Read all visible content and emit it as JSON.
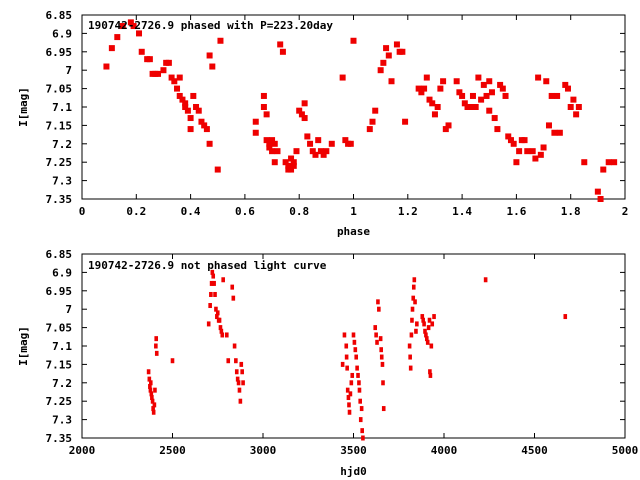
{
  "point_color": "#ee0000",
  "chart_data": [
    {
      "type": "scatter",
      "title": "190742-2726.9 phased with P=223.20day",
      "xlabel": "phase",
      "ylabel": "I[mag]",
      "xlim": [
        0,
        2
      ],
      "ylim": [
        7.35,
        6.85
      ],
      "y_inverted": true,
      "grid": false,
      "x_ticks": [
        "0",
        "0.2",
        "0.4",
        "0.6",
        "0.8",
        "1",
        "1.2",
        "1.4",
        "1.6",
        "1.8",
        "2"
      ],
      "y_ticks": [
        "6.85",
        "6.9",
        "6.95",
        "7",
        "7.05",
        "7.1",
        "7.15",
        "7.2",
        "7.25",
        "7.3",
        "7.35"
      ],
      "points": [
        [
          0.09,
          6.99
        ],
        [
          0.11,
          6.94
        ],
        [
          0.13,
          6.91
        ],
        [
          0.15,
          6.88
        ],
        [
          0.18,
          6.87
        ],
        [
          0.19,
          6.88
        ],
        [
          0.21,
          6.9
        ],
        [
          0.22,
          6.95
        ],
        [
          0.24,
          6.97
        ],
        [
          0.25,
          6.97
        ],
        [
          0.26,
          7.01
        ],
        [
          0.27,
          7.01
        ],
        [
          0.28,
          7.01
        ],
        [
          0.3,
          7.0
        ],
        [
          0.31,
          6.98
        ],
        [
          0.32,
          6.98
        ],
        [
          0.33,
          7.02
        ],
        [
          0.34,
          7.03
        ],
        [
          0.35,
          7.05
        ],
        [
          0.36,
          7.07
        ],
        [
          0.36,
          7.02
        ],
        [
          0.37,
          7.08
        ],
        [
          0.38,
          7.1
        ],
        [
          0.38,
          7.09
        ],
        [
          0.39,
          7.11
        ],
        [
          0.4,
          7.13
        ],
        [
          0.4,
          7.16
        ],
        [
          0.41,
          7.07
        ],
        [
          0.42,
          7.1
        ],
        [
          0.43,
          7.11
        ],
        [
          0.44,
          7.14
        ],
        [
          0.45,
          7.15
        ],
        [
          0.46,
          7.16
        ],
        [
          0.47,
          7.2
        ],
        [
          0.47,
          6.96
        ],
        [
          0.48,
          6.99
        ],
        [
          0.5,
          7.27
        ],
        [
          0.51,
          6.92
        ],
        [
          0.64,
          7.14
        ],
        [
          0.64,
          7.17
        ],
        [
          0.67,
          7.1
        ],
        [
          0.67,
          7.07
        ],
        [
          0.68,
          7.12
        ],
        [
          0.68,
          7.19
        ],
        [
          0.69,
          7.2
        ],
        [
          0.69,
          7.21
        ],
        [
          0.7,
          7.19
        ],
        [
          0.7,
          7.22
        ],
        [
          0.71,
          7.2
        ],
        [
          0.71,
          7.25
        ],
        [
          0.72,
          7.22
        ],
        [
          0.73,
          6.93
        ],
        [
          0.74,
          6.95
        ],
        [
          0.75,
          7.25
        ],
        [
          0.76,
          7.26
        ],
        [
          0.76,
          7.27
        ],
        [
          0.77,
          7.24
        ],
        [
          0.77,
          7.27
        ],
        [
          0.78,
          7.26
        ],
        [
          0.78,
          7.25
        ],
        [
          0.79,
          7.22
        ],
        [
          0.8,
          7.11
        ],
        [
          0.81,
          7.12
        ],
        [
          0.82,
          7.09
        ],
        [
          0.82,
          7.13
        ],
        [
          0.83,
          7.18
        ],
        [
          0.84,
          7.2
        ],
        [
          0.85,
          7.22
        ],
        [
          0.86,
          7.23
        ],
        [
          0.87,
          7.19
        ],
        [
          0.88,
          7.22
        ],
        [
          0.89,
          7.23
        ],
        [
          0.9,
          7.22
        ],
        [
          0.92,
          7.2
        ],
        [
          0.96,
          7.02
        ],
        [
          0.97,
          7.19
        ],
        [
          0.98,
          7.2
        ],
        [
          0.99,
          7.2
        ],
        [
          1.0,
          6.92
        ],
        [
          1.06,
          7.16
        ],
        [
          1.07,
          7.14
        ],
        [
          1.08,
          7.11
        ],
        [
          1.1,
          7.0
        ],
        [
          1.11,
          6.98
        ],
        [
          1.12,
          6.94
        ],
        [
          1.13,
          6.96
        ],
        [
          1.14,
          7.03
        ],
        [
          1.16,
          6.93
        ],
        [
          1.17,
          6.95
        ],
        [
          1.18,
          6.95
        ],
        [
          1.19,
          7.14
        ],
        [
          1.24,
          7.05
        ],
        [
          1.25,
          7.06
        ],
        [
          1.26,
          7.05
        ],
        [
          1.27,
          7.02
        ],
        [
          1.28,
          7.08
        ],
        [
          1.29,
          7.09
        ],
        [
          1.3,
          7.12
        ],
        [
          1.31,
          7.1
        ],
        [
          1.32,
          7.05
        ],
        [
          1.33,
          7.03
        ],
        [
          1.34,
          7.16
        ],
        [
          1.35,
          7.15
        ],
        [
          1.38,
          7.03
        ],
        [
          1.39,
          7.06
        ],
        [
          1.4,
          7.07
        ],
        [
          1.41,
          7.09
        ],
        [
          1.42,
          7.1
        ],
        [
          1.43,
          7.1
        ],
        [
          1.44,
          7.07
        ],
        [
          1.45,
          7.1
        ],
        [
          1.46,
          7.02
        ],
        [
          1.47,
          7.08
        ],
        [
          1.48,
          7.04
        ],
        [
          1.49,
          7.07
        ],
        [
          1.5,
          7.03
        ],
        [
          1.5,
          7.11
        ],
        [
          1.51,
          7.06
        ],
        [
          1.52,
          7.13
        ],
        [
          1.53,
          7.16
        ],
        [
          1.54,
          7.04
        ],
        [
          1.55,
          7.05
        ],
        [
          1.56,
          7.07
        ],
        [
          1.57,
          7.18
        ],
        [
          1.58,
          7.19
        ],
        [
          1.59,
          7.2
        ],
        [
          1.6,
          7.25
        ],
        [
          1.61,
          7.22
        ],
        [
          1.62,
          7.19
        ],
        [
          1.63,
          7.19
        ],
        [
          1.64,
          7.22
        ],
        [
          1.66,
          7.22
        ],
        [
          1.67,
          7.24
        ],
        [
          1.68,
          7.02
        ],
        [
          1.69,
          7.23
        ],
        [
          1.7,
          7.21
        ],
        [
          1.71,
          7.03
        ],
        [
          1.72,
          7.15
        ],
        [
          1.73,
          7.07
        ],
        [
          1.74,
          7.17
        ],
        [
          1.75,
          7.07
        ],
        [
          1.76,
          7.17
        ],
        [
          1.78,
          7.04
        ],
        [
          1.79,
          7.05
        ],
        [
          1.8,
          7.1
        ],
        [
          1.81,
          7.08
        ],
        [
          1.82,
          7.12
        ],
        [
          1.83,
          7.1
        ],
        [
          1.85,
          7.25
        ],
        [
          1.9,
          7.33
        ],
        [
          1.91,
          7.35
        ],
        [
          1.92,
          7.27
        ],
        [
          1.94,
          7.25
        ],
        [
          1.96,
          7.25
        ]
      ]
    },
    {
      "type": "scatter",
      "title": "190742-2726.9 not phased light curve",
      "xlabel": "hjd0",
      "ylabel": "I[mag]",
      "xlim": [
        2000,
        5000
      ],
      "ylim": [
        7.35,
        6.85
      ],
      "y_inverted": true,
      "grid": false,
      "x_ticks": [
        "2000",
        "2500",
        "3000",
        "3500",
        "4000",
        "4500",
        "5000"
      ],
      "y_ticks": [
        "6.85",
        "6.9",
        "6.95",
        "7",
        "7.05",
        "7.1",
        "7.15",
        "7.2",
        "7.25",
        "7.3",
        "7.35"
      ],
      "points": [
        [
          2368,
          7.17
        ],
        [
          2372,
          7.19
        ],
        [
          2375,
          7.21
        ],
        [
          2378,
          7.22
        ],
        [
          2380,
          7.2
        ],
        [
          2383,
          7.23
        ],
        [
          2386,
          7.24
        ],
        [
          2390,
          7.25
        ],
        [
          2393,
          7.27
        ],
        [
          2396,
          7.28
        ],
        [
          2400,
          7.26
        ],
        [
          2403,
          7.22
        ],
        [
          2408,
          7.1
        ],
        [
          2410,
          7.08
        ],
        [
          2413,
          7.12
        ],
        [
          2500,
          7.14
        ],
        [
          2700,
          7.04
        ],
        [
          2708,
          6.99
        ],
        [
          2712,
          6.96
        ],
        [
          2716,
          6.93
        ],
        [
          2720,
          6.9
        ],
        [
          2725,
          6.91
        ],
        [
          2730,
          6.93
        ],
        [
          2735,
          6.96
        ],
        [
          2740,
          7.0
        ],
        [
          2745,
          7.02
        ],
        [
          2750,
          7.01
        ],
        [
          2755,
          7.03
        ],
        [
          2760,
          7.03
        ],
        [
          2765,
          7.05
        ],
        [
          2770,
          7.06
        ],
        [
          2775,
          7.07
        ],
        [
          2780,
          6.92
        ],
        [
          2800,
          7.07
        ],
        [
          2808,
          7.14
        ],
        [
          2830,
          6.94
        ],
        [
          2836,
          6.97
        ],
        [
          2843,
          7.1
        ],
        [
          2850,
          7.14
        ],
        [
          2855,
          7.17
        ],
        [
          2860,
          7.19
        ],
        [
          2865,
          7.2
        ],
        [
          2870,
          7.22
        ],
        [
          2875,
          7.25
        ],
        [
          2880,
          7.15
        ],
        [
          2885,
          7.17
        ],
        [
          2890,
          7.2
        ],
        [
          3440,
          7.15
        ],
        [
          3450,
          7.07
        ],
        [
          3460,
          7.1
        ],
        [
          3462,
          7.13
        ],
        [
          3465,
          7.16
        ],
        [
          3468,
          7.22
        ],
        [
          3472,
          7.24
        ],
        [
          3475,
          7.26
        ],
        [
          3478,
          7.28
        ],
        [
          3483,
          7.23
        ],
        [
          3488,
          7.2
        ],
        [
          3493,
          7.18
        ],
        [
          3500,
          7.07
        ],
        [
          3505,
          7.09
        ],
        [
          3510,
          7.11
        ],
        [
          3515,
          7.13
        ],
        [
          3520,
          7.16
        ],
        [
          3525,
          7.18
        ],
        [
          3530,
          7.2
        ],
        [
          3533,
          7.22
        ],
        [
          3537,
          7.25
        ],
        [
          3540,
          7.3
        ],
        [
          3545,
          7.27
        ],
        [
          3548,
          7.33
        ],
        [
          3552,
          7.35
        ],
        [
          3620,
          7.05
        ],
        [
          3625,
          7.07
        ],
        [
          3630,
          7.09
        ],
        [
          3635,
          6.98
        ],
        [
          3640,
          7.0
        ],
        [
          3650,
          7.08
        ],
        [
          3653,
          7.11
        ],
        [
          3656,
          7.13
        ],
        [
          3660,
          7.15
        ],
        [
          3663,
          7.2
        ],
        [
          3667,
          7.27
        ],
        [
          3810,
          7.1
        ],
        [
          3813,
          7.13
        ],
        [
          3816,
          7.16
        ],
        [
          3820,
          7.07
        ],
        [
          3823,
          7.03
        ],
        [
          3826,
          7.0
        ],
        [
          3830,
          6.97
        ],
        [
          3833,
          6.94
        ],
        [
          3836,
          6.92
        ],
        [
          3840,
          6.98
        ],
        [
          3845,
          7.06
        ],
        [
          3850,
          7.04
        ],
        [
          3880,
          7.02
        ],
        [
          3885,
          7.03
        ],
        [
          3890,
          7.04
        ],
        [
          3895,
          7.06
        ],
        [
          3900,
          7.07
        ],
        [
          3905,
          7.08
        ],
        [
          3910,
          7.09
        ],
        [
          3915,
          7.05
        ],
        [
          3920,
          7.03
        ],
        [
          3922,
          7.17
        ],
        [
          3925,
          7.18
        ],
        [
          3930,
          7.1
        ],
        [
          3935,
          7.04
        ],
        [
          3945,
          7.02
        ],
        [
          4230,
          6.92
        ],
        [
          4670,
          7.02
        ]
      ]
    }
  ]
}
